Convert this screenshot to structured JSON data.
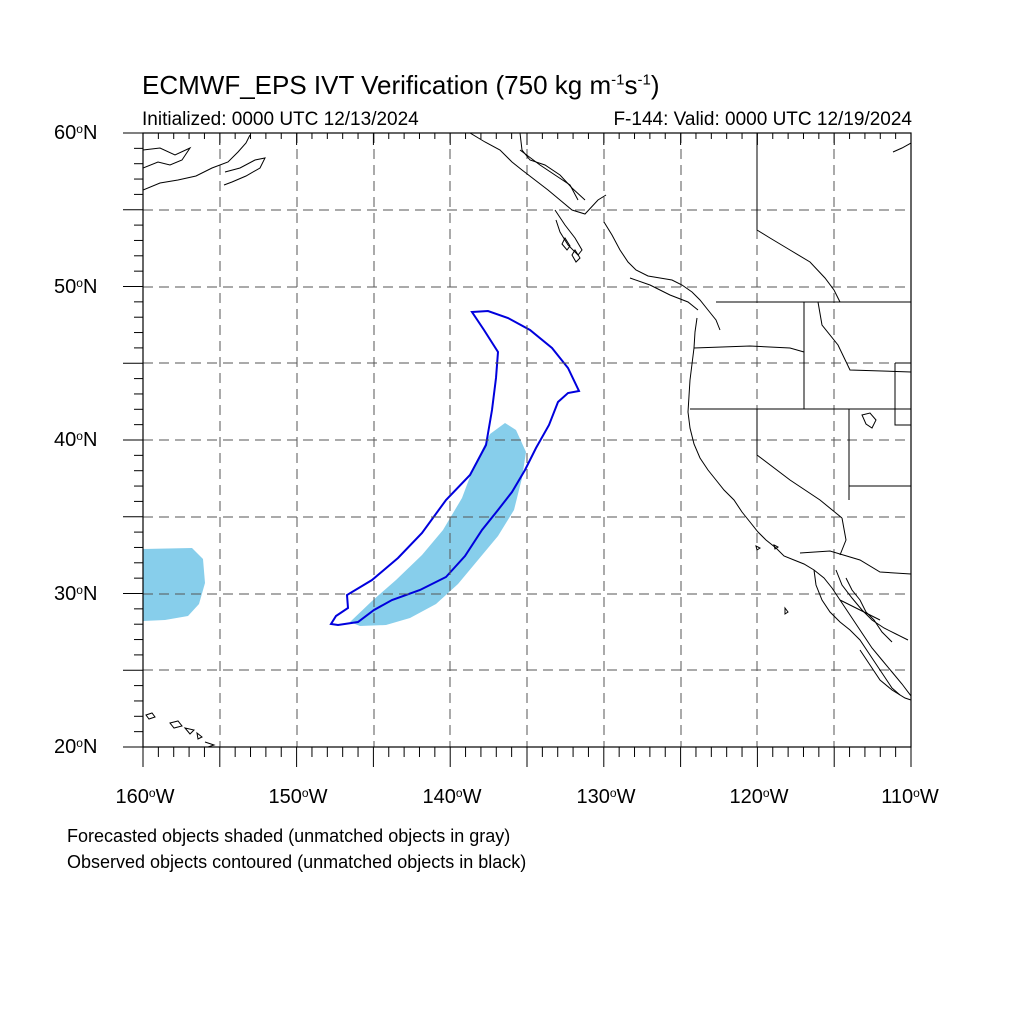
{
  "title": {
    "main": "ECMWF_EPS IVT Verification (750 kg m",
    "exp1": "-1",
    "mid": "s",
    "exp2": "-1",
    "close": ")"
  },
  "subtitle": {
    "left": "Initialized: 0000 UTC 12/13/2024",
    "right": "F-144: Valid: 0000 UTC 12/19/2024"
  },
  "lat_labels": [
    {
      "num": "60",
      "deg": "o",
      "hemi": "N"
    },
    {
      "num": "50",
      "deg": "o",
      "hemi": "N"
    },
    {
      "num": "40",
      "deg": "o",
      "hemi": "N"
    },
    {
      "num": "30",
      "deg": "o",
      "hemi": "N"
    },
    {
      "num": "20",
      "deg": "o",
      "hemi": "N"
    }
  ],
  "lon_labels": [
    {
      "num": "160",
      "deg": "o",
      "hemi": "W"
    },
    {
      "num": "150",
      "deg": "o",
      "hemi": "W"
    },
    {
      "num": "140",
      "deg": "o",
      "hemi": "W"
    },
    {
      "num": "130",
      "deg": "o",
      "hemi": "W"
    },
    {
      "num": "120",
      "deg": "o",
      "hemi": "W"
    },
    {
      "num": "110",
      "deg": "o",
      "hemi": "W"
    }
  ],
  "footer": {
    "line1": "Forecasted objects shaded (unmatched objects in gray)",
    "line2": "Observed objects contoured (unmatched objects in black)"
  },
  "map": {
    "lon_range": [
      -160,
      -110
    ],
    "lat_range": [
      20,
      60
    ],
    "grid": "dashed, every 5 degrees",
    "forecast_fill_color": "#87ceeb",
    "observed_contour_color": "#0000dd",
    "coastline_color": "#000000"
  }
}
